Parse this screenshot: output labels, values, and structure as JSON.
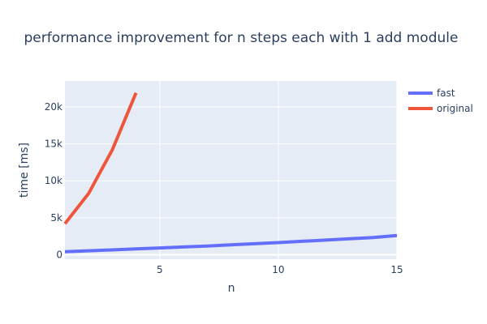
{
  "chart_data": {
    "type": "line",
    "title": "performance improvement for n steps each with 1 add module",
    "xlabel": "n",
    "ylabel": "time [ms]",
    "xlim": [
      1,
      15
    ],
    "ylim": [
      -600,
      23500
    ],
    "x_ticks": [
      5,
      10,
      15
    ],
    "y_ticks": [
      {
        "value": 0,
        "label": "0"
      },
      {
        "value": 5000,
        "label": "5k"
      },
      {
        "value": 10000,
        "label": "10k"
      },
      {
        "value": 15000,
        "label": "15k"
      },
      {
        "value": 20000,
        "label": "20k"
      }
    ],
    "grid": true,
    "legend_position": "top-right",
    "series": [
      {
        "name": "fast",
        "color": "#636efa",
        "x": [
          1,
          2,
          3,
          4,
          5,
          6,
          7,
          8,
          9,
          10,
          11,
          12,
          13,
          14,
          15
        ],
        "y": [
          420,
          540,
          660,
          790,
          920,
          1050,
          1190,
          1340,
          1490,
          1650,
          1820,
          1990,
          2160,
          2340,
          2600
        ]
      },
      {
        "name": "original",
        "color": "#ef553b",
        "x": [
          1,
          2,
          3,
          4
        ],
        "y": [
          4200,
          8300,
          14200,
          21900
        ]
      }
    ]
  }
}
